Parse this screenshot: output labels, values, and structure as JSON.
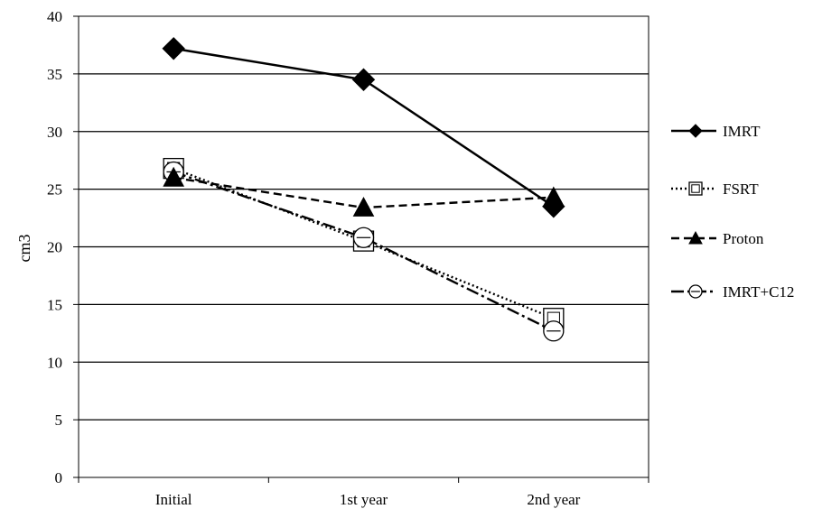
{
  "chart_data": {
    "type": "line",
    "categories": [
      "Initial",
      "1st year",
      "2nd year"
    ],
    "ylabel": "cm3",
    "xlabel": "",
    "ylim": [
      0,
      40
    ],
    "yticks": [
      0,
      5,
      10,
      15,
      20,
      25,
      30,
      35,
      40
    ],
    "grid": true,
    "legend_position": "right",
    "series": [
      {
        "name": "IMRT",
        "values": [
          37.2,
          34.5,
          23.5
        ],
        "marker": "diamond-filled",
        "line": "solid"
      },
      {
        "name": "FSRT",
        "values": [
          26.8,
          20.5,
          13.8
        ],
        "marker": "square-open",
        "line": "dotted"
      },
      {
        "name": "Proton",
        "values": [
          26.0,
          23.4,
          24.3
        ],
        "marker": "triangle-filled",
        "line": "dashed"
      },
      {
        "name": "IMRT+C12",
        "values": [
          26.5,
          20.8,
          12.7
        ],
        "marker": "circle-open",
        "line": "dash-dot"
      }
    ]
  }
}
